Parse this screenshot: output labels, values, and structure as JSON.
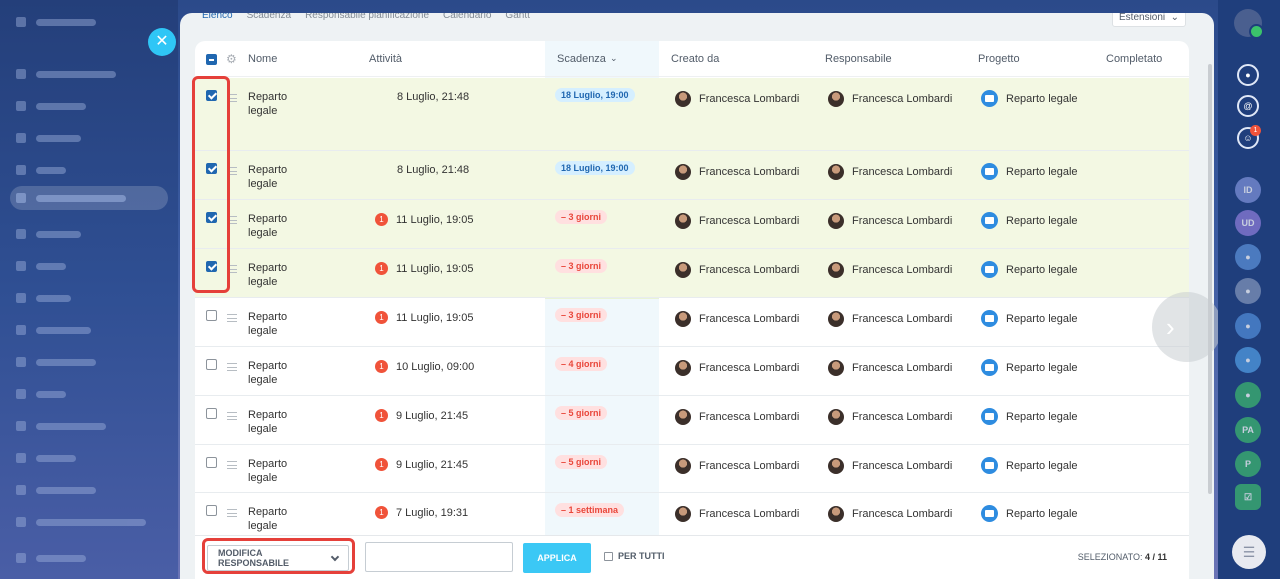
{
  "tabs": [
    {
      "label": "Elenco",
      "active": true
    },
    {
      "label": "Scadenza",
      "active": false
    },
    {
      "label": "Responsabile pianificazione",
      "active": false
    },
    {
      "label": "Calendario",
      "active": false
    },
    {
      "label": "Gantt",
      "active": false
    }
  ],
  "extensions_label": "Estensioni",
  "columns": {
    "nome": "Nome",
    "attivita": "Attività",
    "scadenza": "Scadenza",
    "creato_da": "Creato da",
    "responsabile": "Responsabile",
    "progetto": "Progetto",
    "completato": "Completato"
  },
  "rows": [
    {
      "name_line1": "Reparto",
      "name_line2": "legale",
      "checked": true,
      "activity_badge": "",
      "activity": "8 Luglio, 21:48",
      "deadline": "18 Luglio, 19:00",
      "deadline_kind": "blue",
      "creator": "Francesca Lombardi",
      "responsible": "Francesca Lombardi",
      "project": "Reparto legale"
    },
    {
      "name_line1": "Reparto",
      "name_line2": "legale",
      "checked": true,
      "activity_badge": "",
      "activity": "8 Luglio, 21:48",
      "deadline": "18 Luglio, 19:00",
      "deadline_kind": "blue",
      "creator": "Francesca Lombardi",
      "responsible": "Francesca Lombardi",
      "project": "Reparto legale"
    },
    {
      "name_line1": "Reparto",
      "name_line2": "legale",
      "checked": true,
      "activity_badge": "1",
      "activity": "11 Luglio, 19:05",
      "deadline": "– 3 giorni",
      "deadline_kind": "red",
      "creator": "Francesca Lombardi",
      "responsible": "Francesca Lombardi",
      "project": "Reparto legale"
    },
    {
      "name_line1": "Reparto",
      "name_line2": "legale",
      "checked": true,
      "activity_badge": "1",
      "activity": "11 Luglio, 19:05",
      "deadline": "– 3 giorni",
      "deadline_kind": "red",
      "creator": "Francesca Lombardi",
      "responsible": "Francesca Lombardi",
      "project": "Reparto legale"
    },
    {
      "name_line1": "Reparto",
      "name_line2": "legale",
      "checked": false,
      "activity_badge": "1",
      "activity": "11 Luglio, 19:05",
      "deadline": "– 3 giorni",
      "deadline_kind": "red",
      "creator": "Francesca Lombardi",
      "responsible": "Francesca Lombardi",
      "project": "Reparto legale"
    },
    {
      "name_line1": "Reparto",
      "name_line2": "legale",
      "checked": false,
      "activity_badge": "1",
      "activity": "10 Luglio, 09:00",
      "deadline": "– 4 giorni",
      "deadline_kind": "red",
      "creator": "Francesca Lombardi",
      "responsible": "Francesca Lombardi",
      "project": "Reparto legale"
    },
    {
      "name_line1": "Reparto",
      "name_line2": "legale",
      "checked": false,
      "activity_badge": "1",
      "activity": "9 Luglio, 21:45",
      "deadline": "– 5 giorni",
      "deadline_kind": "red",
      "creator": "Francesca Lombardi",
      "responsible": "Francesca Lombardi",
      "project": "Reparto legale"
    },
    {
      "name_line1": "Reparto",
      "name_line2": "legale",
      "checked": false,
      "activity_badge": "1",
      "activity": "9 Luglio, 21:45",
      "deadline": "– 5 giorni",
      "deadline_kind": "red",
      "creator": "Francesca Lombardi",
      "responsible": "Francesca Lombardi",
      "project": "Reparto legale"
    },
    {
      "name_line1": "Reparto",
      "name_line2": "legale",
      "checked": false,
      "activity_badge": "1",
      "activity": "7 Luglio, 19:31",
      "deadline": "– 1 settimana",
      "deadline_kind": "red",
      "creator": "Francesca Lombardi",
      "responsible": "Francesca Lombardi",
      "project": "Reparto legale"
    }
  ],
  "footer": {
    "action_select": "MODIFICA RESPONSABILE",
    "apply_label": "APPLICA",
    "for_all_label": "PER TUTTI",
    "selected_label": "SELEZIONATO:",
    "selected_count": "4 / 11"
  },
  "right_rail": {
    "notification_badge": "1",
    "avatars": [
      "ID",
      "UD",
      "PA",
      "P"
    ]
  },
  "colors": {
    "accent_blue": "#2067b0",
    "apply_button": "#3bc8f5",
    "selected_row": "#f3f8e3",
    "highlight_red": "#e5403a",
    "overdue_red": "#e9473b"
  }
}
